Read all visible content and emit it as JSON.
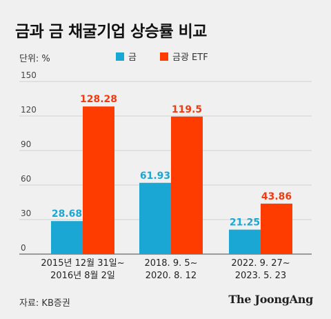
{
  "title": "금과 금 채굴기업 상승률 비교",
  "unit_label": "단위: %",
  "source": "자료: KB증권",
  "logo": "The JoongAng",
  "colors": {
    "gold": "#1ba7d4",
    "etf": "#ff3c00",
    "label_gold": "#1ba7d4",
    "label_etf": "#f03a10"
  },
  "chart_data": {
    "type": "bar",
    "categories": [
      [
        "2015년 12월 31일~",
        "2016년 8월 2일"
      ],
      [
        "2018. 9. 5~",
        "2020. 8. 12"
      ],
      [
        "2022. 9. 27~",
        "2023. 5. 23"
      ]
    ],
    "series": [
      {
        "name": "금",
        "values": [
          28.68,
          61.93,
          21.25
        ],
        "labels": [
          "28.68",
          "61.93",
          "21.25"
        ]
      },
      {
        "name": "금광 ETF",
        "values": [
          128.28,
          119.5,
          43.86
        ],
        "labels": [
          "128.28",
          "119.5",
          "43.86"
        ]
      }
    ],
    "yticks": [
      0,
      30,
      60,
      90,
      120,
      150
    ],
    "ylim": [
      0,
      150
    ],
    "grid": true,
    "legend_position": "top"
  }
}
